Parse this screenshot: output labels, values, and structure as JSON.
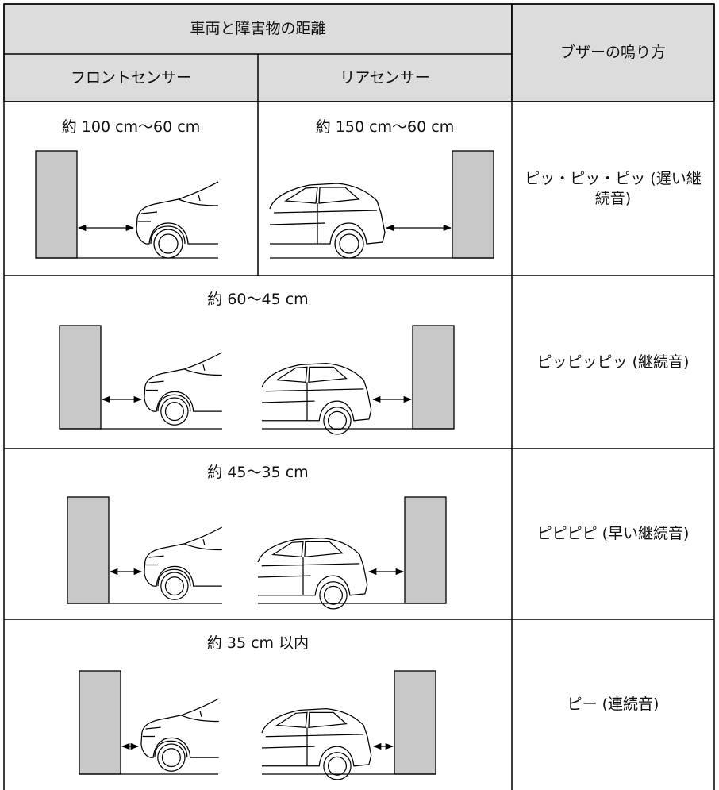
{
  "table": {
    "header": {
      "distance": "車両と障害物の距離",
      "front": "フロントセンサー",
      "rear": "リアセンサー",
      "buzzer": "ブザーの鳴り方"
    },
    "rows": [
      {
        "front": "約 100 cm〜60 cm",
        "rear": "約 150 cm〜60 cm",
        "buzzer": "ピッ・ピッ・ピッ (遅い継続音)"
      },
      {
        "distance": "約 60〜45 cm",
        "buzzer": "ピッピッピッ (継続音)"
      },
      {
        "distance": "約 45〜35 cm",
        "buzzer": "ピピピピ (早い継続音)"
      },
      {
        "distance": "約 35 cm 以内",
        "buzzer": "ピー (連続音)"
      }
    ]
  }
}
